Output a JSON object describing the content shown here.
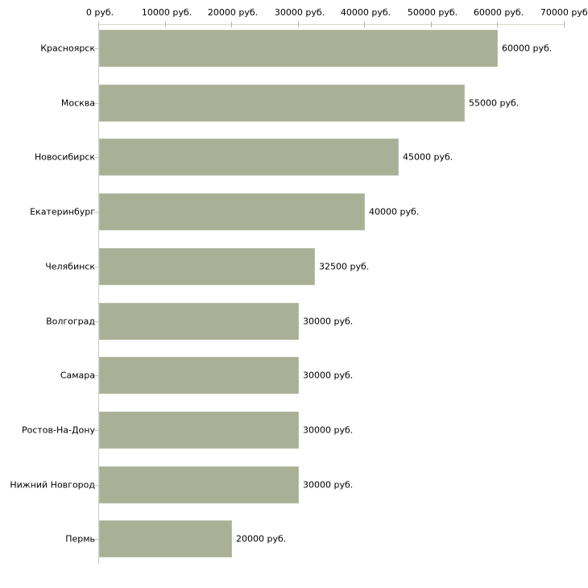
{
  "chart_data": {
    "type": "bar",
    "orientation": "horizontal",
    "title": "",
    "categories": [
      "Красноярск",
      "Москва",
      "Новосибирск",
      "Екатеринбург",
      "Челябинск",
      "Волгоград",
      "Самара",
      "Ростов-На-Дону",
      "Нижний Новгород",
      "Пермь"
    ],
    "values": [
      60000,
      55000,
      45000,
      40000,
      32500,
      30000,
      30000,
      30000,
      30000,
      20000
    ],
    "value_labels": [
      "60000 руб.",
      "55000 руб.",
      "45000 руб.",
      "40000 руб.",
      "32500 руб.",
      "30000 руб.",
      "30000 руб.",
      "30000 руб.",
      "30000 руб.",
      "20000 руб."
    ],
    "x_ticks": [
      0,
      10000,
      20000,
      30000,
      40000,
      50000,
      60000,
      70000
    ],
    "x_tick_labels": [
      "0 руб.",
      "10000 руб.",
      "20000 руб.",
      "30000 руб.",
      "40000 руб.",
      "50000 руб.",
      "60000 руб.",
      "70000 руб."
    ],
    "xlim": [
      0,
      70000
    ],
    "unit": "руб.",
    "ylabel": "",
    "xlabel": "",
    "legend": false,
    "grid": false,
    "colors": {
      "bar_fill": "#a9b095",
      "bar_border": "#b9bfa8",
      "axis_line": "#d9d9c9",
      "axis_line_vertical": "#cfcfc3",
      "tick_mark": "#b3b3a3",
      "category_tick": "#c9c9b7",
      "text": "#000000",
      "background": "#ffffff"
    }
  }
}
